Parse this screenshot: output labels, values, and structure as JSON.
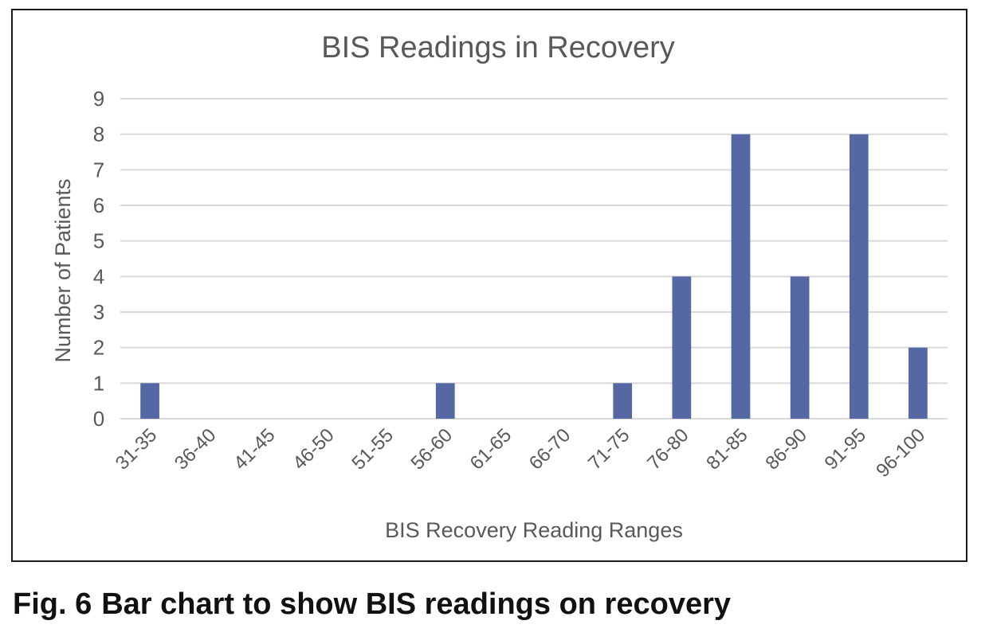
{
  "chart_data": {
    "type": "bar",
    "title": "BIS Readings in Recovery",
    "xlabel": "BIS Recovery Reading Ranges",
    "ylabel": "Number of Patients",
    "categories": [
      "31-35",
      "36-40",
      "41-45",
      "46-50",
      "51-55",
      "56-60",
      "61-65",
      "66-70",
      "71-75",
      "76-80",
      "81-85",
      "86-90",
      "91-95",
      "96-100"
    ],
    "values": [
      1,
      0,
      0,
      0,
      0,
      1,
      0,
      0,
      1,
      4,
      8,
      4,
      8,
      2
    ],
    "ylim": [
      0,
      9
    ],
    "yticks": [
      0,
      1,
      2,
      3,
      4,
      5,
      6,
      7,
      8,
      9
    ],
    "grid": true,
    "legend": "none",
    "bar_color": "#5568a4",
    "grid_color": "#d9d9d9",
    "text_color": "#595959"
  },
  "caption": {
    "label": "Fig. 6",
    "text": "Bar chart to show BIS readings on recovery"
  }
}
